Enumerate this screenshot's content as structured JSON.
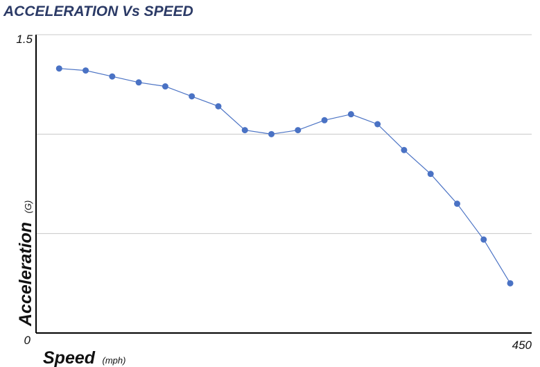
{
  "chart_data": {
    "type": "line",
    "title": "ACCELERATION Vs SPEED",
    "xlabel": "Speed",
    "xlabel_unit": "(mph)",
    "ylabel": "Acceleration",
    "ylabel_unit": "(G)",
    "xlim": [
      0,
      450
    ],
    "ylim": [
      0,
      1.5
    ],
    "x_tick_labels": [
      "450"
    ],
    "y_tick_labels": [
      "0",
      "1.5"
    ],
    "y_gridlines": [
      0.5,
      1.0,
      1.5
    ],
    "grid": true,
    "legend": "none",
    "line_color": "#4a72c4",
    "series": [
      {
        "x": [
          10,
          35,
          60,
          85,
          110,
          135,
          160,
          185,
          210,
          235,
          260,
          285,
          310,
          335,
          360,
          385,
          410,
          435
        ],
        "values": [
          1.33,
          1.32,
          1.29,
          1.26,
          1.24,
          1.19,
          1.14,
          1.02,
          1.0,
          1.02,
          1.07,
          1.1,
          1.05,
          0.92,
          0.8,
          0.65,
          0.47,
          0.25
        ]
      }
    ]
  }
}
